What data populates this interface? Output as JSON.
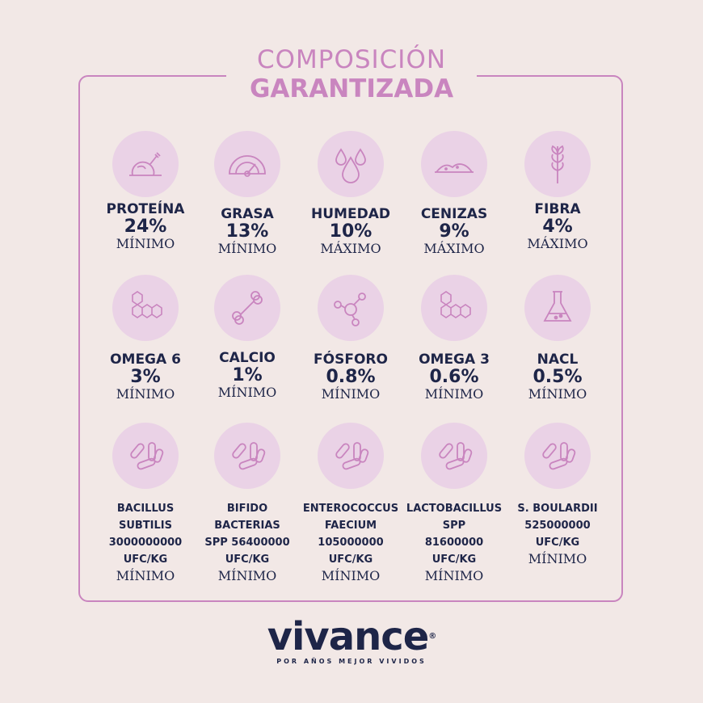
{
  "title": {
    "line1": "COMPOSICIÓN",
    "line2": "GARANTIZADA"
  },
  "colors": {
    "accent": "#c985bf",
    "circle": "#ead2e6",
    "text": "#1e2548",
    "background": "#f2e8e6"
  },
  "row1": [
    {
      "icon": "chicken-icon",
      "name": "PROTEÍNA",
      "value": "24%",
      "limit": "MÍNIMO"
    },
    {
      "icon": "gauge-icon",
      "name": "GRASA",
      "value": "13%",
      "limit": "MÍNIMO"
    },
    {
      "icon": "drops-icon",
      "name": "HUMEDAD",
      "value": "10%",
      "limit": "MÁXIMO"
    },
    {
      "icon": "ash-pile-icon",
      "name": "CENIZAS",
      "value": "9%",
      "limit": "MÁXIMO"
    },
    {
      "icon": "wheat-icon",
      "name": "FIBRA",
      "value": "4%",
      "limit": "MÁXIMO"
    }
  ],
  "row2": [
    {
      "icon": "molecule-hex-icon",
      "name": "OMEGA 6",
      "value": "3%",
      "limit": "MÍNIMO"
    },
    {
      "icon": "bone-icon",
      "name": "CALCIO",
      "value": "1%",
      "limit": "MÍNIMO"
    },
    {
      "icon": "atom-icon",
      "name": "FÓSFORO",
      "value": "0.8%",
      "limit": "MÍNIMO"
    },
    {
      "icon": "molecule-hex-icon",
      "name": "OMEGA 3",
      "value": "0.6%",
      "limit": "MÍNIMO"
    },
    {
      "icon": "flask-icon",
      "name": "NACL",
      "value": "0.5%",
      "limit": "MÍNIMO"
    }
  ],
  "row3": [
    {
      "icon": "bacteria-icon",
      "l1": "BACILLUS",
      "l2": "SUBTILIS",
      "l3": "3000000000",
      "l4": "UFC/KG",
      "limit": "MÍNIMO"
    },
    {
      "icon": "bacteria-icon",
      "l1": "BIFIDO",
      "l2": "BACTERIAS",
      "l3": "SPP 56400000",
      "l4": "UFC/KG",
      "limit": "MÍNIMO"
    },
    {
      "icon": "bacteria-icon",
      "l1": "ENTEROCOCCUS",
      "l2": "FAECIUM",
      "l3": "105000000",
      "l4": "UFC/KG",
      "limit": "MÍNIMO"
    },
    {
      "icon": "bacteria-icon",
      "l1": "LACTOBACILLUS",
      "l2": "SPP",
      "l3": "81600000",
      "l4": "UFC/KG",
      "limit": "MÍNIMO"
    },
    {
      "icon": "bacteria-icon",
      "l1": "S. BOULARDII",
      "l2": "525000000",
      "l3": "UFC/KG",
      "l4": "",
      "limit": "MÍNIMO"
    }
  ],
  "logo": {
    "brand": "vivance",
    "tagline": "POR AÑOS MEJOR VIVIDOS"
  }
}
